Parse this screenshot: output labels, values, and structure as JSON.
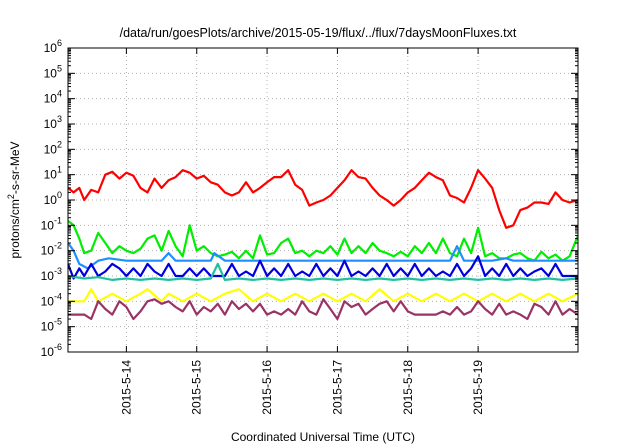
{
  "chart_data": {
    "type": "line",
    "title": "/data/run/goesPlots/archive/2015-05-19/flux/../flux/7daysMoonFluxes.txt",
    "xlabel": "Coordinated Universal Time (UTC)",
    "ylabel": "protons/cm²-s-sr-MeV",
    "y_scale": "log",
    "ylim_exp": [
      -6,
      6
    ],
    "x_domain": [
      "2015-05-13T04:00",
      "2015-05-20T10:00"
    ],
    "x_ticks": [
      "2015-5-14",
      "2015-5-15",
      "2015-5-16",
      "2015-5-17",
      "2015-5-18",
      "2015-5-19"
    ],
    "x_tick_days": [
      1,
      2,
      3,
      4,
      5,
      6
    ],
    "x_start_day": 0.17,
    "x_end_day": 7.42,
    "y_ticks": [
      {
        "exp": -6,
        "base": "10",
        "power": "-6"
      },
      {
        "exp": -5,
        "base": "10",
        "power": "-5"
      },
      {
        "exp": -4,
        "base": "10",
        "power": "-4"
      },
      {
        "exp": -3,
        "base": "10",
        "power": "-3"
      },
      {
        "exp": -2,
        "base": "10",
        "power": "-2"
      },
      {
        "exp": -1,
        "base": "10",
        "power": "-1"
      },
      {
        "exp": 0,
        "base": "10",
        "power": "0"
      },
      {
        "exp": 1,
        "base": "10",
        "power": "1"
      },
      {
        "exp": 2,
        "base": "10",
        "power": "2"
      },
      {
        "exp": 3,
        "base": "10",
        "power": "3"
      },
      {
        "exp": 4,
        "base": "10",
        "power": "4"
      },
      {
        "exp": 5,
        "base": "10",
        "power": "5"
      },
      {
        "exp": 6,
        "base": "10",
        "power": "6"
      }
    ],
    "grid": true,
    "legend": "none",
    "series": [
      {
        "color": "#ff0000",
        "x": [
          0.17,
          0.25,
          0.33,
          0.4,
          0.5,
          0.6,
          0.7,
          0.8,
          0.9,
          1.0,
          1.1,
          1.2,
          1.3,
          1.4,
          1.5,
          1.6,
          1.7,
          1.8,
          1.9,
          2.0,
          2.1,
          2.2,
          2.3,
          2.4,
          2.5,
          2.6,
          2.7,
          2.8,
          2.9,
          3.0,
          3.1,
          3.2,
          3.3,
          3.4,
          3.5,
          3.6,
          3.7,
          3.8,
          3.9,
          4.0,
          4.1,
          4.2,
          4.3,
          4.4,
          4.5,
          4.6,
          4.7,
          4.8,
          4.9,
          5.0,
          5.1,
          5.2,
          5.3,
          5.4,
          5.5,
          5.6,
          5.7,
          5.8,
          5.9,
          6.0,
          6.1,
          6.2,
          6.3,
          6.4,
          6.5,
          6.6,
          6.7,
          6.8,
          6.9,
          7.0,
          7.1,
          7.2,
          7.3,
          7.42
        ],
        "y": [
          3,
          2,
          3,
          1,
          2.5,
          2,
          10,
          13,
          7,
          12,
          9,
          3,
          2,
          7,
          3,
          6,
          8,
          15,
          12,
          7,
          9,
          5,
          4,
          2,
          1.5,
          2,
          5,
          2,
          3,
          5,
          8,
          8,
          15,
          4,
          2.5,
          0.6,
          0.8,
          1,
          1.5,
          3,
          6,
          15,
          8,
          7,
          3,
          1.5,
          1,
          0.6,
          1,
          2,
          3,
          6,
          12,
          8,
          6,
          1.5,
          1.2,
          0.8,
          3,
          15,
          7,
          3,
          0.4,
          0.08,
          0.1,
          0.4,
          0.5,
          0.8,
          0.8,
          0.7,
          2,
          1,
          0.8,
          1
        ]
      },
      {
        "color": "#00ee00",
        "x": [
          0.17,
          0.25,
          0.33,
          0.4,
          0.5,
          0.6,
          0.7,
          0.8,
          0.9,
          1.0,
          1.1,
          1.2,
          1.3,
          1.4,
          1.5,
          1.6,
          1.7,
          1.8,
          1.9,
          2.0,
          2.1,
          2.2,
          2.3,
          2.4,
          2.5,
          2.6,
          2.7,
          2.8,
          2.9,
          3.0,
          3.1,
          3.2,
          3.3,
          3.4,
          3.5,
          3.6,
          3.7,
          3.8,
          3.9,
          4.0,
          4.1,
          4.2,
          4.3,
          4.4,
          4.5,
          4.6,
          4.7,
          4.8,
          4.9,
          5.0,
          5.1,
          5.2,
          5.3,
          5.4,
          5.5,
          5.6,
          5.7,
          5.8,
          5.9,
          6.0,
          6.1,
          6.2,
          6.3,
          6.4,
          6.5,
          6.6,
          6.7,
          6.8,
          6.9,
          7.0,
          7.1,
          7.2,
          7.3,
          7.42
        ],
        "y": [
          0.15,
          0.1,
          0.03,
          0.008,
          0.01,
          0.05,
          0.02,
          0.008,
          0.015,
          0.01,
          0.008,
          0.012,
          0.03,
          0.04,
          0.01,
          0.06,
          0.015,
          0.006,
          0.1,
          0.01,
          0.015,
          0.008,
          0.006,
          0.007,
          0.009,
          0.005,
          0.01,
          0.005,
          0.04,
          0.007,
          0.008,
          0.02,
          0.03,
          0.008,
          0.01,
          0.006,
          0.01,
          0.008,
          0.015,
          0.007,
          0.03,
          0.008,
          0.015,
          0.008,
          0.02,
          0.01,
          0.008,
          0.006,
          0.009,
          0.006,
          0.015,
          0.008,
          0.02,
          0.008,
          0.03,
          0.008,
          0.006,
          0.03,
          0.008,
          0.08,
          0.006,
          0.008,
          0.005,
          0.005,
          0.007,
          0.008,
          0.005,
          0.004,
          0.009,
          0.005,
          0.007,
          0.004,
          0.006,
          0.04
        ]
      },
      {
        "color": "#1e8fff",
        "x": [
          0.17,
          0.25,
          0.33,
          0.45,
          0.6,
          0.75,
          1.0,
          1.3,
          1.5,
          1.6,
          1.7,
          1.9,
          2.0,
          2.2,
          2.25,
          2.4,
          2.6,
          2.8,
          3.0,
          3.2,
          3.4,
          3.6,
          3.8,
          4.0,
          4.2,
          4.4,
          4.6,
          4.8,
          5.0,
          5.2,
          5.4,
          5.6,
          5.7,
          5.8,
          6.0,
          6.2,
          6.4,
          6.5,
          6.6,
          6.8,
          7.0,
          7.2,
          7.42
        ],
        "y": [
          0.02,
          0.01,
          0.003,
          0.002,
          0.004,
          0.005,
          0.004,
          0.004,
          0.004,
          0.008,
          0.004,
          0.004,
          0.004,
          0.004,
          0.008,
          0.004,
          0.004,
          0.004,
          0.004,
          0.004,
          0.004,
          0.004,
          0.004,
          0.004,
          0.004,
          0.004,
          0.004,
          0.004,
          0.004,
          0.004,
          0.004,
          0.004,
          0.015,
          0.004,
          0.004,
          0.004,
          0.005,
          0.004,
          0.004,
          0.004,
          0.004,
          0.004,
          0.004
        ]
      },
      {
        "color": "#0000dd",
        "x": [
          0.17,
          0.25,
          0.33,
          0.4,
          0.5,
          0.6,
          0.7,
          0.8,
          0.9,
          1.0,
          1.1,
          1.2,
          1.3,
          1.4,
          1.5,
          1.6,
          1.7,
          1.8,
          1.9,
          2.0,
          2.1,
          2.2,
          2.3,
          2.4,
          2.5,
          2.6,
          2.7,
          2.8,
          2.9,
          3.0,
          3.1,
          3.2,
          3.3,
          3.4,
          3.5,
          3.6,
          3.7,
          3.8,
          3.9,
          4.0,
          4.1,
          4.2,
          4.3,
          4.4,
          4.5,
          4.6,
          4.7,
          4.8,
          4.9,
          5.0,
          5.1,
          5.2,
          5.3,
          5.4,
          5.5,
          5.6,
          5.7,
          5.8,
          5.9,
          6.0,
          6.1,
          6.2,
          6.3,
          6.4,
          6.5,
          6.6,
          6.7,
          6.8,
          6.9,
          7.0,
          7.1,
          7.2,
          7.3,
          7.42
        ],
        "y": [
          0.003,
          0.0008,
          0.002,
          0.001,
          0.003,
          0.001,
          0.0015,
          0.003,
          0.002,
          0.001,
          0.002,
          0.001,
          0.003,
          0.0015,
          0.001,
          0.003,
          0.001,
          0.001,
          0.002,
          0.001,
          0.002,
          0.001,
          0.001,
          0.001,
          0.003,
          0.001,
          0.0015,
          0.001,
          0.004,
          0.001,
          0.002,
          0.001,
          0.003,
          0.001,
          0.0015,
          0.001,
          0.003,
          0.001,
          0.002,
          0.001,
          0.004,
          0.001,
          0.0015,
          0.001,
          0.002,
          0.001,
          0.003,
          0.001,
          0.002,
          0.001,
          0.003,
          0.001,
          0.002,
          0.001,
          0.0015,
          0.001,
          0.003,
          0.001,
          0.002,
          0.006,
          0.001,
          0.002,
          0.001,
          0.003,
          0.001,
          0.002,
          0.001,
          0.0015,
          0.002,
          0.001,
          0.003,
          0.001,
          0.001,
          0.001
        ]
      },
      {
        "color": "#20c0a0",
        "x": [
          0.17,
          0.4,
          0.6,
          0.8,
          1.0,
          1.2,
          1.4,
          1.6,
          1.8,
          2.0,
          2.2,
          2.3,
          2.4,
          2.6,
          2.8,
          3.0,
          3.2,
          3.4,
          3.6,
          3.8,
          4.0,
          4.2,
          4.4,
          4.6,
          4.8,
          5.0,
          5.2,
          5.4,
          5.6,
          5.8,
          6.0,
          6.2,
          6.4,
          6.6,
          6.8,
          7.0,
          7.2,
          7.42
        ],
        "y": [
          0.001,
          0.0008,
          0.0009,
          0.0007,
          0.0008,
          0.0007,
          0.0008,
          0.0007,
          0.0008,
          0.0007,
          0.0008,
          0.003,
          0.0007,
          0.0008,
          0.0007,
          0.0008,
          0.0007,
          0.0008,
          0.0007,
          0.0008,
          0.0007,
          0.0008,
          0.0007,
          0.0008,
          0.0007,
          0.0008,
          0.0007,
          0.0008,
          0.0007,
          0.0008,
          0.0007,
          0.0008,
          0.0007,
          0.0008,
          0.0007,
          0.0008,
          0.0007,
          0.0008
        ]
      },
      {
        "color": "#ffff00",
        "x": [
          0.17,
          0.4,
          0.5,
          0.6,
          0.8,
          1.0,
          1.2,
          1.3,
          1.5,
          1.6,
          1.8,
          2.0,
          2.2,
          2.4,
          2.6,
          2.8,
          3.0,
          3.2,
          3.4,
          3.6,
          3.8,
          4.0,
          4.2,
          4.4,
          4.6,
          4.8,
          5.0,
          5.2,
          5.4,
          5.6,
          5.8,
          6.0,
          6.2,
          6.4,
          6.6,
          6.8,
          7.0,
          7.2,
          7.42
        ],
        "y": [
          0.0001,
          0.0001,
          0.0003,
          0.0001,
          0.0002,
          0.0001,
          0.0002,
          0.0003,
          0.0001,
          0.0002,
          0.0001,
          0.0002,
          0.0001,
          0.0002,
          0.0003,
          0.0001,
          0.0002,
          0.0001,
          0.0002,
          0.0001,
          0.0002,
          0.0001,
          0.0002,
          0.0001,
          0.0003,
          0.0001,
          0.0002,
          0.0001,
          0.0002,
          0.0001,
          0.0002,
          0.0001,
          0.0002,
          0.0001,
          0.0002,
          0.0001,
          0.0002,
          0.0001,
          0.0002
        ]
      },
      {
        "color": "#993366",
        "x": [
          0.17,
          0.25,
          0.33,
          0.4,
          0.5,
          0.6,
          0.7,
          0.8,
          0.9,
          1.0,
          1.1,
          1.2,
          1.3,
          1.4,
          1.5,
          1.6,
          1.7,
          1.8,
          1.9,
          2.0,
          2.1,
          2.2,
          2.3,
          2.4,
          2.5,
          2.6,
          2.7,
          2.8,
          2.9,
          3.0,
          3.1,
          3.2,
          3.3,
          3.4,
          3.5,
          3.6,
          3.7,
          3.8,
          3.9,
          4.0,
          4.1,
          4.2,
          4.3,
          4.4,
          4.5,
          4.6,
          4.7,
          4.8,
          4.9,
          5.0,
          5.1,
          5.2,
          5.3,
          5.4,
          5.5,
          5.6,
          5.7,
          5.8,
          5.9,
          6.0,
          6.1,
          6.2,
          6.3,
          6.4,
          6.5,
          6.6,
          6.7,
          6.8,
          6.9,
          7.0,
          7.1,
          7.2,
          7.3,
          7.42
        ],
        "y": [
          3e-05,
          3e-05,
          3e-05,
          3e-05,
          2e-05,
          0.0001,
          5e-05,
          3e-05,
          0.0001,
          6e-05,
          2e-05,
          4e-05,
          0.0001,
          0.00012,
          8e-05,
          0.0001,
          6e-05,
          4e-05,
          0.0001,
          3e-05,
          6e-05,
          4e-05,
          8e-05,
          3e-05,
          0.0001,
          5e-05,
          8e-05,
          4e-05,
          8e-05,
          3e-05,
          4e-05,
          3e-05,
          5e-05,
          3e-05,
          0.0001,
          4e-05,
          3e-05,
          0.00012,
          5e-05,
          2e-05,
          0.0001,
          6e-05,
          8e-05,
          3e-05,
          5e-05,
          8e-05,
          0.0001,
          4e-05,
          0.0001,
          4e-05,
          3e-05,
          3e-05,
          3e-05,
          3e-05,
          4e-05,
          3e-05,
          6e-05,
          3e-05,
          4e-05,
          0.0001,
          5e-05,
          3e-05,
          8e-05,
          3e-05,
          4e-05,
          3e-05,
          2e-05,
          8e-05,
          6e-05,
          3e-05,
          0.0001,
          3e-05,
          5e-05,
          3e-05
        ]
      }
    ]
  }
}
